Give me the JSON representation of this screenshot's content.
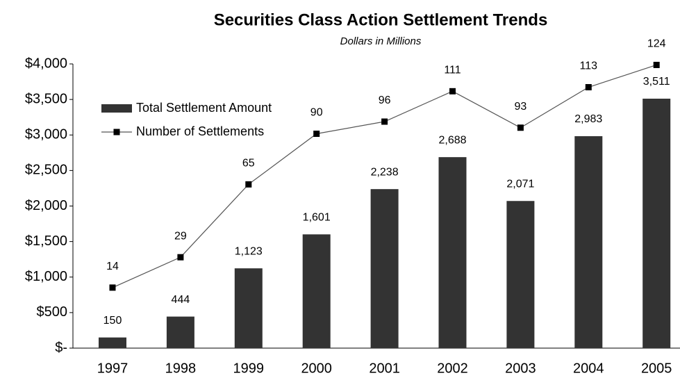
{
  "chart_data": {
    "type": "bar",
    "title": "Securities Class Action Settlement Trends",
    "subtitle": "Dollars in Millions",
    "categories": [
      "1997",
      "1998",
      "1999",
      "2000",
      "2001",
      "2002",
      "2003",
      "2004",
      "2005"
    ],
    "series": [
      {
        "name": "Total Settlement Amount",
        "type": "bar",
        "color": "#333333",
        "values": [
          150,
          444,
          1123,
          1601,
          2238,
          2688,
          2071,
          2983,
          3511
        ],
        "value_labels": [
          "150",
          "444",
          "1,123",
          "1,601",
          "2,238",
          "2,688",
          "2,071",
          "2,983",
          "3,511"
        ]
      },
      {
        "name": "Number of Settlements",
        "type": "line",
        "color": "#000000",
        "axis": "y2",
        "values": [
          14,
          29,
          65,
          90,
          96,
          111,
          93,
          113,
          124
        ]
      }
    ],
    "ylim": [
      0,
      4000
    ],
    "yticks": [
      {
        "value": 0,
        "label": "$-"
      },
      {
        "value": 500,
        "label": "$500"
      },
      {
        "value": 1000,
        "label": "$1,000"
      },
      {
        "value": 1500,
        "label": "$1,500"
      },
      {
        "value": 2000,
        "label": "$2,000"
      },
      {
        "value": 2500,
        "label": "$2,500"
      },
      {
        "value": 3000,
        "label": "$3,000"
      },
      {
        "value": 3500,
        "label": "$3,500"
      },
      {
        "value": 4000,
        "label": "$4,000"
      }
    ],
    "y2lim": [
      -15.9,
      124.5
    ],
    "legend": "upper left",
    "grid": false
  }
}
